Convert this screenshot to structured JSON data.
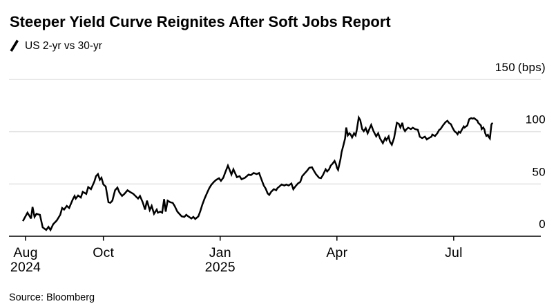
{
  "header": {
    "title": "Steeper Yield Curve Reignites After Soft Jobs Report",
    "legend_label": "US 2-yr vs 30-yr",
    "legend_icon": "slash-icon"
  },
  "footer": {
    "source": "Source: Bloomberg"
  },
  "chart_data": {
    "type": "line",
    "title": "Steeper Yield Curve Reignites After Soft Jobs Report",
    "subtitle": "US 2-yr vs 30-yr",
    "ylabel_unit": "(bps)",
    "x_description": "months since Aug 1 2024 (0 = Aug 2024, 12 = Aug 2025)",
    "xlim": [
      -0.45,
      13.25
    ],
    "ylim": [
      0,
      150
    ],
    "grid": "horizontal",
    "legend_position": "top-left",
    "x_ticks": [
      {
        "pos": 0,
        "label": "Aug",
        "sublabel": "2024"
      },
      {
        "pos": 2,
        "label": "Oct",
        "sublabel": ""
      },
      {
        "pos": 5,
        "label": "Jan",
        "sublabel": "2025"
      },
      {
        "pos": 8,
        "label": "Apr",
        "sublabel": ""
      },
      {
        "pos": 11,
        "label": "Jul",
        "sublabel": ""
      }
    ],
    "y_ticks": [
      {
        "value": 0,
        "label": "0",
        "unit": ""
      },
      {
        "value": 50,
        "label": "50",
        "unit": ""
      },
      {
        "value": 100,
        "label": "100",
        "unit": ""
      },
      {
        "value": 150,
        "label": "150",
        "unit": "(bps)"
      }
    ],
    "colors": {
      "line": "#000000",
      "grid": "#e2e2e2",
      "axis": "#000000",
      "text": "#000000",
      "background": "#ffffff"
    },
    "series": [
      {
        "name": "US 2-yr vs 30-yr yield spread (bps)",
        "color": "#000000",
        "points": [
          [
            -0.07,
            14.5
          ],
          [
            0.05,
            22.5
          ],
          [
            0.14,
            17
          ],
          [
            0.18,
            28
          ],
          [
            0.23,
            18.5
          ],
          [
            0.28,
            21.5
          ],
          [
            0.37,
            20.5
          ],
          [
            0.44,
            8.5
          ],
          [
            0.53,
            6
          ],
          [
            0.59,
            9
          ],
          [
            0.64,
            6
          ],
          [
            0.71,
            11.5
          ],
          [
            0.8,
            15
          ],
          [
            0.89,
            20.5
          ],
          [
            0.94,
            27
          ],
          [
            0.99,
            25.5
          ],
          [
            1.06,
            29
          ],
          [
            1.12,
            27
          ],
          [
            1.21,
            35
          ],
          [
            1.26,
            38.5
          ],
          [
            1.29,
            36
          ],
          [
            1.35,
            39
          ],
          [
            1.42,
            37
          ],
          [
            1.47,
            42.5
          ],
          [
            1.56,
            40.5
          ],
          [
            1.61,
            47
          ],
          [
            1.68,
            45
          ],
          [
            1.77,
            52.5
          ],
          [
            1.81,
            57.5
          ],
          [
            1.86,
            59.5
          ],
          [
            1.91,
            54
          ],
          [
            1.95,
            56
          ],
          [
            2.0,
            49.5
          ],
          [
            2.06,
            47.5
          ],
          [
            2.13,
            32.5
          ],
          [
            2.18,
            32
          ],
          [
            2.23,
            34
          ],
          [
            2.3,
            44
          ],
          [
            2.36,
            46.5
          ],
          [
            2.41,
            42
          ],
          [
            2.48,
            38.5
          ],
          [
            2.54,
            40.5
          ],
          [
            2.62,
            44
          ],
          [
            2.68,
            42.5
          ],
          [
            2.77,
            40.5
          ],
          [
            2.89,
            36
          ],
          [
            2.94,
            38.5
          ],
          [
            3.01,
            32.5
          ],
          [
            3.07,
            25.5
          ],
          [
            3.12,
            34
          ],
          [
            3.19,
            25
          ],
          [
            3.24,
            29
          ],
          [
            3.3,
            21.5
          ],
          [
            3.37,
            25.5
          ],
          [
            3.4,
            22.5
          ],
          [
            3.46,
            23.5
          ],
          [
            3.51,
            22.5
          ],
          [
            3.56,
            35.5
          ],
          [
            3.6,
            23.5
          ],
          [
            3.65,
            34
          ],
          [
            3.72,
            32.5
          ],
          [
            3.78,
            32
          ],
          [
            3.83,
            29
          ],
          [
            3.9,
            23.5
          ],
          [
            3.95,
            21.5
          ],
          [
            4.01,
            19
          ],
          [
            4.08,
            18.5
          ],
          [
            4.13,
            20.5
          ],
          [
            4.18,
            19
          ],
          [
            4.26,
            17
          ],
          [
            4.31,
            18.5
          ],
          [
            4.36,
            16.5
          ],
          [
            4.44,
            19
          ],
          [
            4.49,
            24
          ],
          [
            4.54,
            30
          ],
          [
            4.6,
            36
          ],
          [
            4.67,
            42
          ],
          [
            4.72,
            46
          ],
          [
            4.77,
            49
          ],
          [
            4.84,
            52
          ],
          [
            4.9,
            54
          ],
          [
            4.97,
            55.5
          ],
          [
            5.02,
            53
          ],
          [
            5.08,
            56
          ],
          [
            5.13,
            61
          ],
          [
            5.2,
            67.5
          ],
          [
            5.25,
            63
          ],
          [
            5.29,
            59
          ],
          [
            5.34,
            64
          ],
          [
            5.43,
            56.5
          ],
          [
            5.5,
            57.5
          ],
          [
            5.55,
            54.5
          ],
          [
            5.64,
            56
          ],
          [
            5.73,
            59
          ],
          [
            5.79,
            58.5
          ],
          [
            5.86,
            60.5
          ],
          [
            5.94,
            59.5
          ],
          [
            6.0,
            60.5
          ],
          [
            6.05,
            55.5
          ],
          [
            6.12,
            48.5
          ],
          [
            6.17,
            45.5
          ],
          [
            6.22,
            41
          ],
          [
            6.26,
            39.5
          ],
          [
            6.31,
            42.5
          ],
          [
            6.38,
            45
          ],
          [
            6.44,
            44
          ],
          [
            6.47,
            46
          ],
          [
            6.52,
            47.5
          ],
          [
            6.58,
            49.5
          ],
          [
            6.65,
            48.5
          ],
          [
            6.7,
            49.5
          ],
          [
            6.76,
            48.5
          ],
          [
            6.83,
            50.5
          ],
          [
            6.88,
            45
          ],
          [
            6.93,
            47.5
          ],
          [
            7.0,
            50.5
          ],
          [
            7.06,
            52
          ],
          [
            7.11,
            57.5
          ],
          [
            7.18,
            60.5
          ],
          [
            7.23,
            62.5
          ],
          [
            7.29,
            65.5
          ],
          [
            7.36,
            66
          ],
          [
            7.41,
            62.5
          ],
          [
            7.46,
            59.5
          ],
          [
            7.54,
            56
          ],
          [
            7.59,
            55.5
          ],
          [
            7.64,
            58.5
          ],
          [
            7.71,
            64
          ],
          [
            7.75,
            62
          ],
          [
            7.8,
            64
          ],
          [
            7.84,
            67.5
          ],
          [
            7.89,
            69.5
          ],
          [
            7.94,
            72
          ],
          [
            7.98,
            68.5
          ],
          [
            8.0,
            65.5
          ],
          [
            8.03,
            63.5
          ],
          [
            8.09,
            73.5
          ],
          [
            8.12,
            80.5
          ],
          [
            8.17,
            87.5
          ],
          [
            8.21,
            93.5
          ],
          [
            8.24,
            104
          ],
          [
            8.28,
            96.5
          ],
          [
            8.32,
            98.5
          ],
          [
            8.35,
            97.5
          ],
          [
            8.39,
            94.5
          ],
          [
            8.44,
            98.5
          ],
          [
            8.48,
            96.5
          ],
          [
            8.51,
            101.5
          ],
          [
            8.56,
            113.5
          ],
          [
            8.6,
            111
          ],
          [
            8.65,
            102.5
          ],
          [
            8.69,
            100.5
          ],
          [
            8.74,
            103.5
          ],
          [
            8.79,
            98.5
          ],
          [
            8.85,
            104
          ],
          [
            8.88,
            106.5
          ],
          [
            8.94,
            100.5
          ],
          [
            9.01,
            95.5
          ],
          [
            9.06,
            98.5
          ],
          [
            9.11,
            93.5
          ],
          [
            9.18,
            89
          ],
          [
            9.24,
            94
          ],
          [
            9.27,
            92
          ],
          [
            9.33,
            95.5
          ],
          [
            9.36,
            90.5
          ],
          [
            9.41,
            87.5
          ],
          [
            9.47,
            94
          ],
          [
            9.54,
            108.5
          ],
          [
            9.59,
            107.5
          ],
          [
            9.63,
            104
          ],
          [
            9.68,
            108.5
          ],
          [
            9.71,
            103
          ],
          [
            9.75,
            100.5
          ],
          [
            9.78,
            102
          ],
          [
            9.83,
            103.8
          ],
          [
            9.9,
            102.5
          ],
          [
            9.95,
            103.8
          ],
          [
            10.01,
            102.5
          ],
          [
            10.08,
            101.8
          ],
          [
            10.13,
            95.2
          ],
          [
            10.19,
            93.9
          ],
          [
            10.26,
            95.2
          ],
          [
            10.31,
            92.6
          ],
          [
            10.36,
            93.9
          ],
          [
            10.43,
            95.2
          ],
          [
            10.45,
            97.2
          ],
          [
            10.52,
            95.9
          ],
          [
            10.58,
            98.5
          ],
          [
            10.63,
            101.8
          ],
          [
            10.66,
            102.5
          ],
          [
            10.72,
            105.8
          ],
          [
            10.79,
            109.1
          ],
          [
            10.84,
            110.4
          ],
          [
            10.88,
            108.4
          ],
          [
            10.93,
            107.1
          ],
          [
            10.97,
            103.8
          ],
          [
            11.02,
            100.5
          ],
          [
            11.07,
            99
          ],
          [
            11.1,
            97.5
          ],
          [
            11.13,
            100
          ],
          [
            11.17,
            99
          ],
          [
            11.22,
            102.5
          ],
          [
            11.26,
            105
          ],
          [
            11.28,
            104
          ],
          [
            11.35,
            106
          ],
          [
            11.37,
            108.5
          ],
          [
            11.4,
            112
          ],
          [
            11.45,
            113
          ],
          [
            11.49,
            112.5
          ],
          [
            11.52,
            113
          ],
          [
            11.54,
            112.5
          ],
          [
            11.61,
            110.5
          ],
          [
            11.63,
            108.5
          ],
          [
            11.7,
            106
          ],
          [
            11.72,
            102.5
          ],
          [
            11.76,
            104
          ],
          [
            11.79,
            102
          ],
          [
            11.81,
            98.5
          ],
          [
            11.84,
            96
          ],
          [
            11.88,
            97
          ],
          [
            11.9,
            95
          ],
          [
            11.93,
            93.5
          ],
          [
            11.97,
            107
          ],
          [
            12.0,
            108.5
          ]
        ]
      }
    ]
  }
}
